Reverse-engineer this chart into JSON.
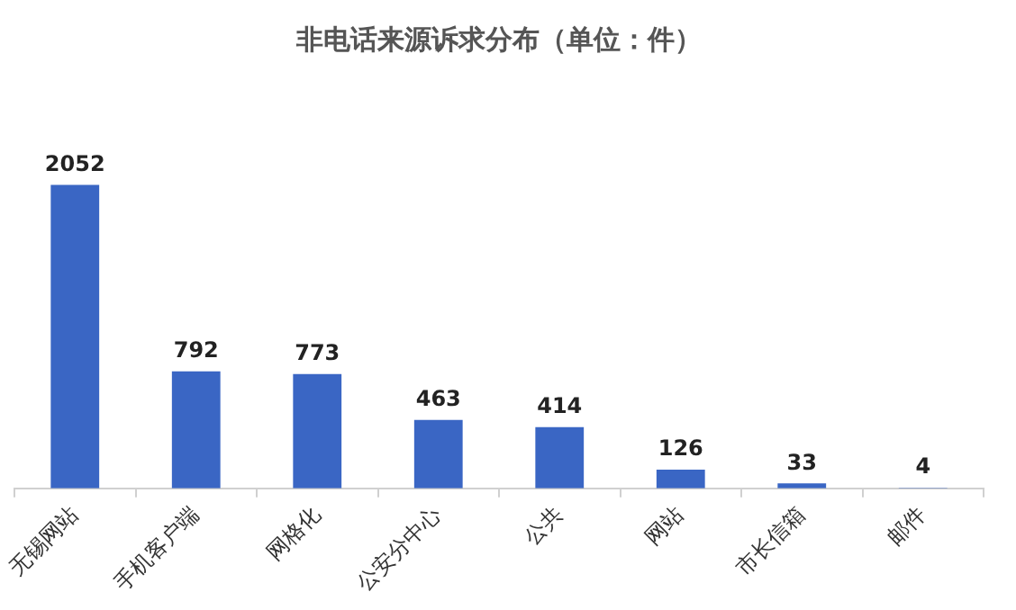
{
  "chart_data": {
    "type": "bar",
    "title": "非电话来源诉求分布（单位：件）",
    "categories": [
      "无锡网站",
      "手机客户端",
      "网格化",
      "公安分中心",
      "公共",
      "网站",
      "市长信箱",
      "邮件"
    ],
    "values": [
      2052,
      792,
      773,
      463,
      414,
      126,
      33,
      4
    ],
    "color": "#3a66c4",
    "data_labels": true,
    "grid": false,
    "legend": false,
    "tick_labels": "x"
  }
}
